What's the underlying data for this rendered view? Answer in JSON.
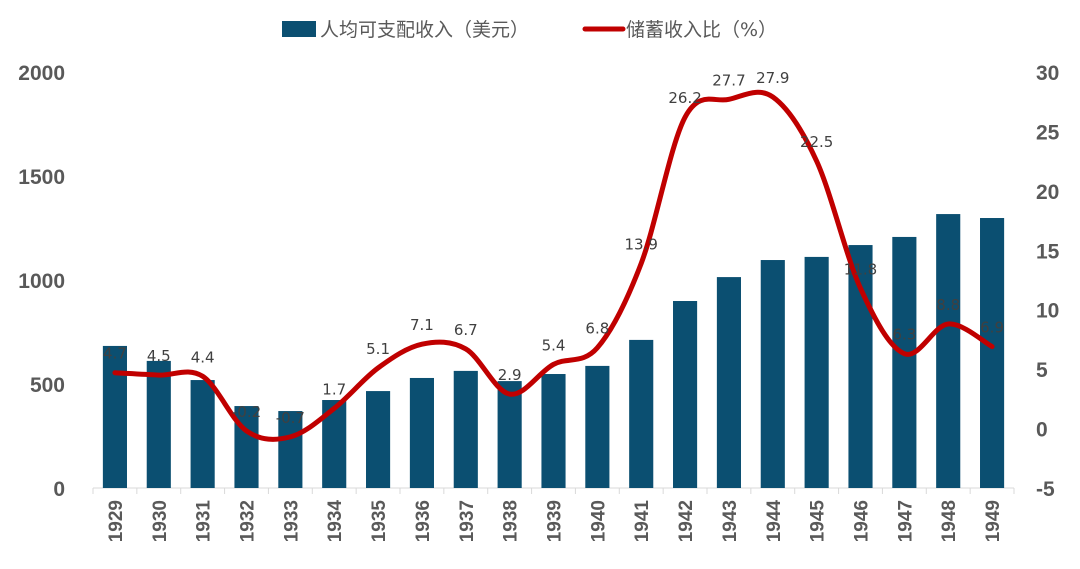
{
  "chart_data": {
    "type": "bar+line",
    "title": "",
    "categories": [
      "1929",
      "1930",
      "1931",
      "1932",
      "1933",
      "1934",
      "1935",
      "1936",
      "1937",
      "1938",
      "1939",
      "1940",
      "1941",
      "1942",
      "1943",
      "1944",
      "1945",
      "1946",
      "1947",
      "1948",
      "1949"
    ],
    "series": [
      {
        "name": "人均可支配收入（美元）",
        "type": "bar",
        "axis": "left",
        "color": "#0B4F71",
        "values": [
          683,
          611,
          519,
          394,
          370,
          423,
          466,
          529,
          563,
          514,
          548,
          587,
          712,
          899,
          1014,
          1096,
          1111,
          1168,
          1207,
          1317,
          1298
        ]
      },
      {
        "name": "储蓄收入比（%）",
        "type": "line",
        "axis": "right",
        "color": "#C00000",
        "values": [
          4.7,
          4.5,
          4.4,
          -0.2,
          -0.7,
          1.7,
          5.1,
          7.1,
          6.7,
          2.9,
          5.4,
          6.8,
          13.9,
          26.2,
          27.7,
          27.9,
          22.5,
          11.8,
          6.3,
          8.8,
          6.9
        ],
        "labels": [
          "4.7",
          "4.5",
          "4.4",
          "-0.2",
          "-0.7",
          "1.7",
          "5.1",
          "7.1",
          "6.7",
          "2.9",
          "5.4",
          "6.8",
          "13.9",
          "26.2",
          "27.7",
          "27.9",
          "22.5",
          "11.8",
          "6.3",
          "8.8",
          "6.9"
        ]
      }
    ],
    "y_left": {
      "ylim": [
        0,
        2000
      ],
      "ticks": [
        "0",
        "500",
        "1000",
        "1500",
        "2000"
      ]
    },
    "y_right": {
      "ylim": [
        -5,
        30
      ],
      "ticks": [
        "-5",
        "0",
        "5",
        "10",
        "15",
        "20",
        "25",
        "30"
      ]
    },
    "xlabel": "",
    "ylabel": "",
    "grid": false,
    "legend": {
      "position": "top-center",
      "entries": [
        "人均可支配收入（美元）",
        "储蓄收入比（%）"
      ]
    }
  }
}
